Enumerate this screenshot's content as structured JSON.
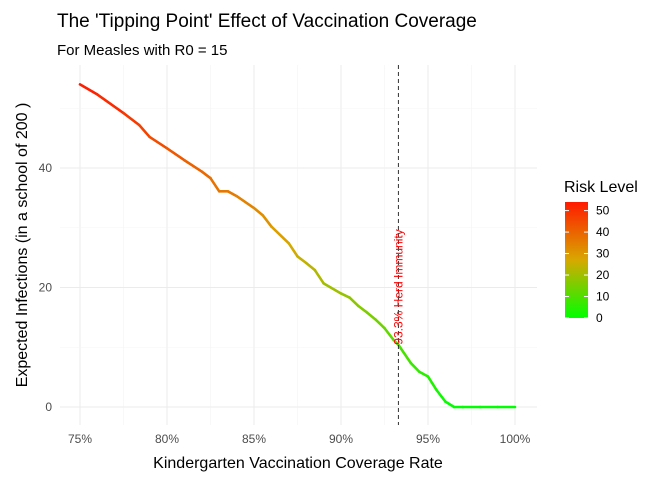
{
  "chart_data": {
    "type": "line",
    "title": "The 'Tipping Point' Effect of Vaccination Coverage",
    "subtitle": "For Measles with R0 = 15",
    "xlabel": "Kindergarten Vaccination Coverage Rate",
    "ylabel": "Expected Infections (in a school of 200 )",
    "xlim": [
      75,
      100
    ],
    "ylim": [
      0,
      54
    ],
    "x_ticks": [
      75,
      80,
      85,
      90,
      95,
      100
    ],
    "x_tick_labels": [
      "75%",
      "80%",
      "85%",
      "90%",
      "95%",
      "100%"
    ],
    "y_ticks": [
      0,
      20,
      40
    ],
    "y_tick_labels": [
      "0",
      "20",
      "40"
    ],
    "grid": true,
    "x": [
      75,
      76,
      77.5,
      78.4,
      79,
      80,
      81,
      82,
      82.5,
      83,
      83.5,
      84,
      85,
      85.5,
      86,
      87,
      87.5,
      88,
      88.5,
      89,
      90,
      90.5,
      91,
      91.5,
      92,
      92.5,
      93,
      93.3,
      94,
      94.5,
      95,
      95.5,
      96,
      96.5,
      97,
      98,
      99,
      100
    ],
    "y": [
      54,
      52.3,
      49.2,
      47.2,
      45.2,
      43.3,
      41.3,
      39.4,
      38.3,
      36.1,
      36.1,
      35.3,
      33.3,
      32.1,
      30.2,
      27.4,
      25.2,
      24.1,
      22.9,
      20.7,
      19.0,
      18.3,
      16.9,
      15.8,
      14.6,
      13.2,
      11.3,
      10.4,
      7.4,
      5.9,
      5.1,
      2.8,
      0.9,
      0,
      0,
      0,
      0,
      0
    ],
    "color_by": "y",
    "annotation": {
      "x": 93.3,
      "label": "93.3% Herd Immunity",
      "color": "#FF0000",
      "line_style": "dashed"
    },
    "legend": {
      "title": "Risk Level",
      "ticks": [
        0,
        10,
        20,
        30,
        40,
        50
      ],
      "tick_labels": [
        "0",
        "10",
        "20",
        "30",
        "40",
        "50"
      ],
      "range": [
        0,
        54
      ],
      "placement": "right",
      "colors": {
        "low": "#00FF00",
        "mid": "#D8A800",
        "high": "#FF1A00"
      }
    }
  }
}
